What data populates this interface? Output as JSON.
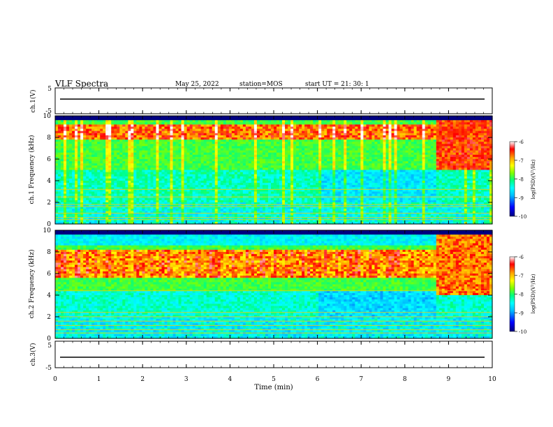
{
  "header": {
    "title": "VLF Spectra",
    "date": "May 25, 2022",
    "station": "station=MOS",
    "start_ut": "start UT =  21: 30: 1"
  },
  "colors": {
    "colormap": [
      "#000080",
      "#0000ff",
      "#00bfff",
      "#00ffff",
      "#00ff80",
      "#80ff00",
      "#ffff00",
      "#ffa500",
      "#ff0000",
      "#ffffff"
    ],
    "axis": "#000000"
  },
  "chart_data": [
    {
      "type": "line",
      "panel": "waveform-ch1",
      "ylabel": "ch.1(V)",
      "xlim": [
        0,
        10
      ],
      "ylim": [
        -5,
        5
      ],
      "yticks": [
        "5",
        "-5"
      ],
      "series": [
        {
          "x": [
            0,
            10
          ],
          "values": [
            0,
            0
          ]
        }
      ]
    },
    {
      "type": "heatmap",
      "panel": "spectrogram-ch1",
      "ylabel": "ch.1 Frequency (kHz)",
      "xlim": [
        0,
        10
      ],
      "ylim": [
        0,
        10
      ],
      "yticks": [
        "0",
        "2",
        "4",
        "6",
        "8",
        "10"
      ],
      "colorbar": {
        "label": "log(PSD)(V²/Hz)",
        "range": [
          -10,
          -6
        ],
        "ticks": [
          "-6",
          "-7",
          "-8",
          "-9",
          "-10"
        ]
      }
    },
    {
      "type": "heatmap",
      "panel": "spectrogram-ch2",
      "ylabel": "ch.2 Frequency (kHz)",
      "xlim": [
        0,
        10
      ],
      "ylim": [
        0,
        10
      ],
      "yticks": [
        "0",
        "2",
        "4",
        "6",
        "8",
        "10"
      ],
      "colorbar": {
        "label": "log(PSD)(V²/Hz)",
        "range": [
          -10,
          -6
        ],
        "ticks": [
          "-6",
          "-7",
          "-8",
          "-9",
          "-10"
        ]
      }
    },
    {
      "type": "line",
      "panel": "waveform-ch3",
      "ylabel": "ch.3(V)",
      "xlim": [
        0,
        10
      ],
      "ylim": [
        -5,
        5
      ],
      "yticks": [
        "5",
        "-5"
      ],
      "series": [
        {
          "x": [
            0,
            10
          ],
          "values": [
            0,
            0
          ]
        }
      ]
    }
  ],
  "x_axis": {
    "label": "Time (min)",
    "ticks": [
      "0",
      "1",
      "2",
      "3",
      "4",
      "5",
      "6",
      "7",
      "8",
      "9",
      "10"
    ]
  }
}
